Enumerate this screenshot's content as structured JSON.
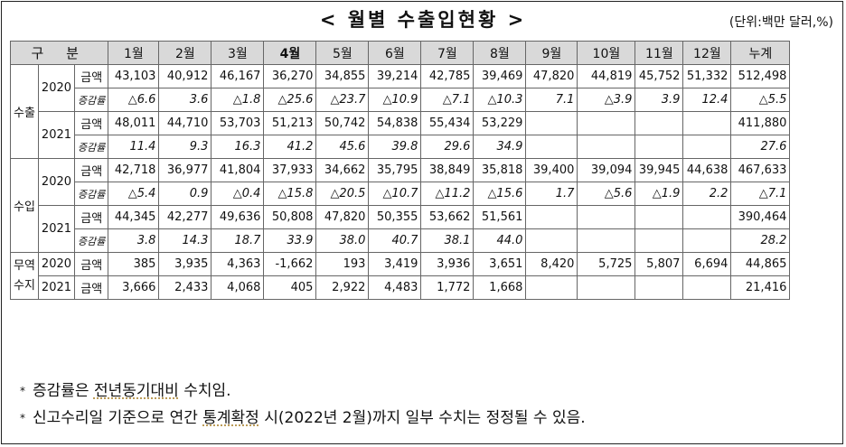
{
  "title": "< 월별 수출입현황 >",
  "unit": "(단위:백만 달러,%)",
  "headers": [
    "구 분",
    "1월",
    "2월",
    "3월",
    "4월",
    "5월",
    "6월",
    "7월",
    "8월",
    "9월",
    "10월",
    "11월",
    "12월",
    "누계"
  ],
  "export": {
    "label": "수출",
    "y2020": {
      "year": "2020",
      "amount_label": "금액",
      "rate_label": "증감률",
      "amounts": [
        "43,103",
        "40,912",
        "46,167",
        "36,270",
        "34,855",
        "39,214",
        "42,785",
        "39,469",
        "47,820",
        "44,819",
        "45,752",
        "51,332",
        "512,498"
      ],
      "rates": [
        "△6.6",
        "3.6",
        "△1.8",
        "△25.6",
        "△23.7",
        "△10.9",
        "△7.1",
        "△10.3",
        "7.1",
        "△3.9",
        "3.9",
        "12.4",
        "△5.5"
      ]
    },
    "y2021": {
      "year": "2021",
      "amount_label": "금액",
      "rate_label": "증감률",
      "amounts": [
        "48,011",
        "44,710",
        "53,703",
        "51,213",
        "50,742",
        "54,838",
        "55,434",
        "53,229",
        "",
        "",
        "",
        "",
        "411,880"
      ],
      "rates": [
        "11.4",
        "9.3",
        "16.3",
        "41.2",
        "45.6",
        "39.8",
        "29.6",
        "34.9",
        "",
        "",
        "",
        "",
        "27.6"
      ]
    }
  },
  "import": {
    "label": "수입",
    "y2020": {
      "year": "2020",
      "amount_label": "금액",
      "rate_label": "증감률",
      "amounts": [
        "42,718",
        "36,977",
        "41,804",
        "37,933",
        "34,662",
        "35,795",
        "38,849",
        "35,818",
        "39,400",
        "39,094",
        "39,945",
        "44,638",
        "467,633"
      ],
      "rates": [
        "△5.4",
        "0.9",
        "△0.4",
        "△15.8",
        "△20.5",
        "△10.7",
        "△11.2",
        "△15.6",
        "1.7",
        "△5.6",
        "△1.9",
        "2.2",
        "△7.1"
      ]
    },
    "y2021": {
      "year": "2021",
      "amount_label": "금액",
      "rate_label": "증감률",
      "amounts": [
        "44,345",
        "42,277",
        "49,636",
        "50,808",
        "47,820",
        "50,355",
        "53,662",
        "51,561",
        "",
        "",
        "",
        "",
        "390,464"
      ],
      "rates": [
        "3.8",
        "14.3",
        "18.7",
        "33.9",
        "38.0",
        "40.7",
        "38.1",
        "44.0",
        "",
        "",
        "",
        "",
        "28.2"
      ]
    }
  },
  "balance": {
    "label": "무역수지",
    "y2020": {
      "year": "2020",
      "amount_label": "금액",
      "amounts": [
        "385",
        "3,935",
        "4,363",
        "-1,662",
        "193",
        "3,419",
        "3,936",
        "3,651",
        "8,420",
        "5,725",
        "5,807",
        "6,694",
        "44,865"
      ]
    },
    "y2021": {
      "year": "2021",
      "amount_label": "금액",
      "amounts": [
        "3,666",
        "2,433",
        "4,068",
        "405",
        "2,922",
        "4,483",
        "1,772",
        "1,668",
        "",
        "",
        "",
        "",
        "21,416"
      ]
    }
  },
  "notes": [
    {
      "bullet": "*",
      "parts": [
        {
          "t": "증감률",
          "u": false
        },
        {
          "t": "은 ",
          "u": false
        },
        {
          "t": "전년동기대비",
          "u": true
        },
        {
          "t": " 수치임.",
          "u": false
        }
      ]
    },
    {
      "bullet": "*",
      "parts": [
        {
          "t": "신고수리일 기준으로 연간 ",
          "u": false
        },
        {
          "t": "통계확정",
          "u": true
        },
        {
          "t": " 시(2022년 2월)까지 일부 수치는 정정될 수 있음.",
          "u": false
        }
      ]
    }
  ]
}
